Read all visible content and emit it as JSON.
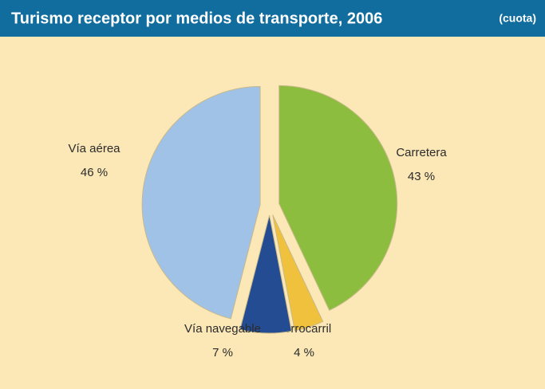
{
  "chart_data": {
    "type": "pie",
    "title": "Turismo receptor por medios de transporte, 2006",
    "subtitle": "(cuota)",
    "categories": [
      "Carretera",
      "Ferrocarril",
      "Vía navegable",
      "Vía aérea"
    ],
    "values": [
      43,
      4,
      7,
      46
    ],
    "value_labels": [
      "43 %",
      "4 %",
      "7 %",
      "46 %"
    ],
    "colors": [
      "#8dbd3e",
      "#efc13d",
      "#234c92",
      "#9fc2e6"
    ]
  }
}
